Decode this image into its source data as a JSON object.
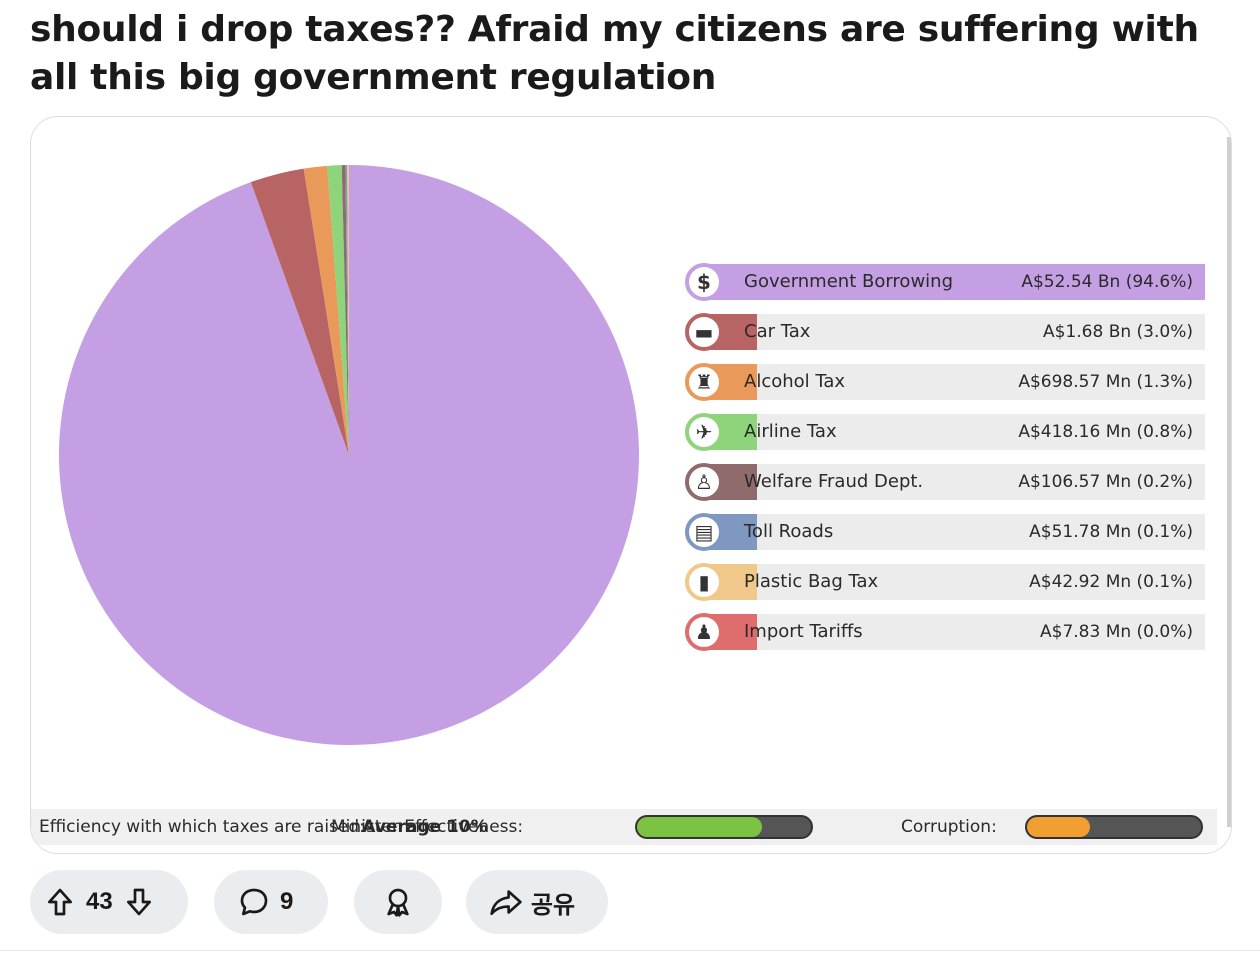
{
  "post": {
    "title": "should i drop taxes?? Afraid my citizens are suffering with all this big government regulation"
  },
  "chart_data": {
    "type": "pie",
    "title": "",
    "slices": [
      {
        "label": "Government Borrowing",
        "value_text": "A$52.54 Bn (94.6%)",
        "percent": 94.6,
        "color": "#c59fe3"
      },
      {
        "label": "Car Tax",
        "value_text": "A$1.68 Bn (3.0%)",
        "percent": 3.0,
        "color": "#b86464"
      },
      {
        "label": "Alcohol Tax",
        "value_text": "A$698.57 Mn (1.3%)",
        "percent": 1.3,
        "color": "#e99a5b"
      },
      {
        "label": "Airline Tax",
        "value_text": "A$418.16 Mn (0.8%)",
        "percent": 0.8,
        "color": "#8ed47a"
      },
      {
        "label": "Welfare Fraud Dept.",
        "value_text": "A$106.57 Mn (0.2%)",
        "percent": 0.2,
        "color": "#8f6b6b"
      },
      {
        "label": "Toll Roads",
        "value_text": "A$51.78 Mn (0.1%)",
        "percent": 0.1,
        "color": "#7f98c2"
      },
      {
        "label": "Plastic Bag Tax",
        "value_text": "A$42.92 Mn (0.1%)",
        "percent": 0.1,
        "color": "#efc88a"
      },
      {
        "label": "Import Tariffs",
        "value_text": "A$7.83 Mn (0.0%)",
        "percent": 0.0,
        "color": "#e06d6d"
      }
    ],
    "legend_placement": "right"
  },
  "legend_icons": [
    {
      "icon": "dollar-icon",
      "glyph": "$",
      "ring": "#c59fe3"
    },
    {
      "icon": "car-icon",
      "glyph": "▬",
      "ring": "#b86464"
    },
    {
      "icon": "bottles-icon",
      "glyph": "♜",
      "ring": "#e99a5b"
    },
    {
      "icon": "airplane-icon",
      "glyph": "✈",
      "ring": "#8ed47a"
    },
    {
      "icon": "person-icon",
      "glyph": "♙",
      "ring": "#8f6b6b"
    },
    {
      "icon": "toll-booth-icon",
      "glyph": "▤",
      "ring": "#7f98c2"
    },
    {
      "icon": "shopping-bag-icon",
      "glyph": "▮",
      "ring": "#efc88a"
    },
    {
      "icon": "customs-officer-icon",
      "glyph": "♟",
      "ring": "#e06d6d"
    }
  ],
  "status_bar": {
    "efficiency_label": "Efficiency with which taxes are raised:",
    "efficiency_value": "Average 10%",
    "minister_label": "Minister Effectiveness:",
    "minister_level": 0.72,
    "minister_color": "#7cc243",
    "corruption_label": "Corruption:",
    "corruption_level": 0.36,
    "corruption_color": "#f0a030"
  },
  "actions": {
    "upvotes": "43",
    "comments": "9",
    "share_label": "공유"
  }
}
